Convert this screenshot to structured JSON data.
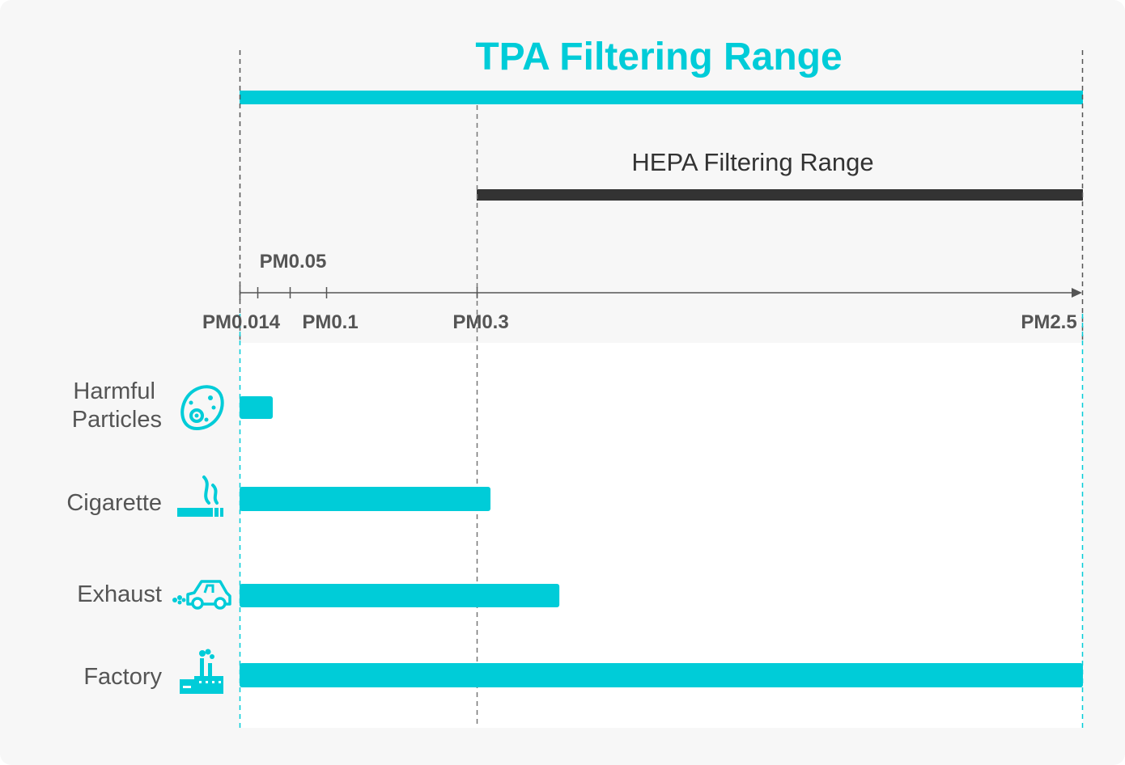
{
  "colors": {
    "accent": "#00CCD8",
    "hepa": "#333333",
    "label": "#555555",
    "card_outer": "#F7F7F7",
    "card_inner": "#FFFFFF",
    "dash_gray": "#777777"
  },
  "tpa": {
    "title": "TPA Filtering Range",
    "from": "PM0.014",
    "to": "PM2.5"
  },
  "hepa": {
    "title": "HEPA Filtering Range",
    "from": "PM0.3",
    "to": "PM2.5"
  },
  "axis": {
    "ticks": [
      {
        "label": "PM0.014",
        "value": 0.014,
        "placement": "below"
      },
      {
        "label": "PM0.05",
        "value": 0.05,
        "placement": "above"
      },
      {
        "label": "PM0.1",
        "value": 0.1,
        "placement": "below"
      },
      {
        "label": "PM0.3",
        "value": 0.3,
        "placement": "below"
      },
      {
        "label": "PM2.5",
        "value": 2.5,
        "placement": "below"
      }
    ],
    "minor_tick_values": [
      0.05,
      0.1
    ]
  },
  "sources": [
    {
      "label_lines": [
        "Harmful",
        "Particles"
      ],
      "icon": "bacteria-icon",
      "range_max": 0.035
    },
    {
      "label_lines": [
        "Cigarette"
      ],
      "icon": "cigarette-icon",
      "range_max": 0.35
    },
    {
      "label_lines": [
        "Exhaust"
      ],
      "icon": "car-exhaust-icon",
      "range_max": 0.6
    },
    {
      "label_lines": [
        "Factory"
      ],
      "icon": "factory-icon",
      "range_max": 2.5
    }
  ]
}
